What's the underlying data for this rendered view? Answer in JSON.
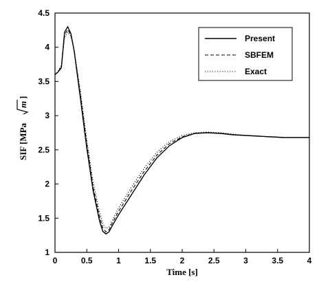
{
  "chart_data": {
    "type": "line",
    "xlabel": "Time [s]",
    "ylabel_main": "SIF [MPa",
    "ylabel_sqrt": "m",
    "ylabel_close": "]",
    "xlim": [
      0,
      4
    ],
    "ylim": [
      1,
      4.5
    ],
    "xticks": [
      "0",
      "0.5",
      "1",
      "1.5",
      "2",
      "2.5",
      "3",
      "3.5",
      "4"
    ],
    "yticks": [
      "1",
      "1.5",
      "2",
      "2.5",
      "3",
      "3.5",
      "4",
      "4.5"
    ],
    "grid": false,
    "legend_position": "top-right",
    "series": [
      {
        "name": "Present",
        "style": "solid",
        "x": [
          0,
          0.05,
          0.1,
          0.15,
          0.2,
          0.25,
          0.3,
          0.4,
          0.5,
          0.6,
          0.7,
          0.75,
          0.8,
          0.85,
          0.9,
          1.0,
          1.2,
          1.4,
          1.6,
          1.8,
          2.0,
          2.2,
          2.4,
          2.6,
          2.8,
          3.0,
          3.2,
          3.4,
          3.6,
          3.8,
          4.0
        ],
        "y": [
          3.6,
          3.64,
          3.7,
          4.22,
          4.3,
          4.2,
          3.95,
          3.25,
          2.52,
          1.9,
          1.46,
          1.31,
          1.27,
          1.3,
          1.39,
          1.55,
          1.84,
          2.13,
          2.38,
          2.56,
          2.68,
          2.74,
          2.75,
          2.74,
          2.72,
          2.71,
          2.7,
          2.69,
          2.68,
          2.68,
          2.68
        ]
      },
      {
        "name": "SBFEM",
        "style": "dashed",
        "x": [
          0,
          0.05,
          0.1,
          0.15,
          0.2,
          0.25,
          0.3,
          0.4,
          0.5,
          0.6,
          0.7,
          0.75,
          0.8,
          0.85,
          0.9,
          1.0,
          1.2,
          1.4,
          1.6,
          1.8,
          2.0,
          2.2,
          2.4,
          2.6,
          2.8,
          3.0,
          3.2,
          3.4,
          3.6,
          3.8,
          4.0
        ],
        "y": [
          3.6,
          3.64,
          3.72,
          4.18,
          4.26,
          4.18,
          3.96,
          3.3,
          2.58,
          1.95,
          1.52,
          1.36,
          1.3,
          1.33,
          1.43,
          1.6,
          1.9,
          2.18,
          2.42,
          2.59,
          2.69,
          2.74,
          2.75,
          2.74,
          2.72,
          2.71,
          2.7,
          2.69,
          2.68,
          2.68,
          2.68
        ]
      },
      {
        "name": "Exact",
        "style": "dotted",
        "x": [
          0,
          0.05,
          0.1,
          0.15,
          0.2,
          0.25,
          0.3,
          0.4,
          0.5,
          0.6,
          0.7,
          0.75,
          0.8,
          0.85,
          0.9,
          1.0,
          1.2,
          1.4,
          1.6,
          1.8,
          2.0,
          2.2,
          2.4,
          2.6,
          2.8,
          3.0,
          3.2,
          3.4,
          3.6,
          3.8,
          4.0
        ],
        "y": [
          3.6,
          3.65,
          3.74,
          4.14,
          4.22,
          4.16,
          3.97,
          3.35,
          2.64,
          2.02,
          1.59,
          1.42,
          1.35,
          1.37,
          1.47,
          1.65,
          1.95,
          2.23,
          2.46,
          2.62,
          2.71,
          2.75,
          2.76,
          2.75,
          2.73,
          2.71,
          2.7,
          2.69,
          2.68,
          2.68,
          2.68
        ]
      }
    ]
  }
}
